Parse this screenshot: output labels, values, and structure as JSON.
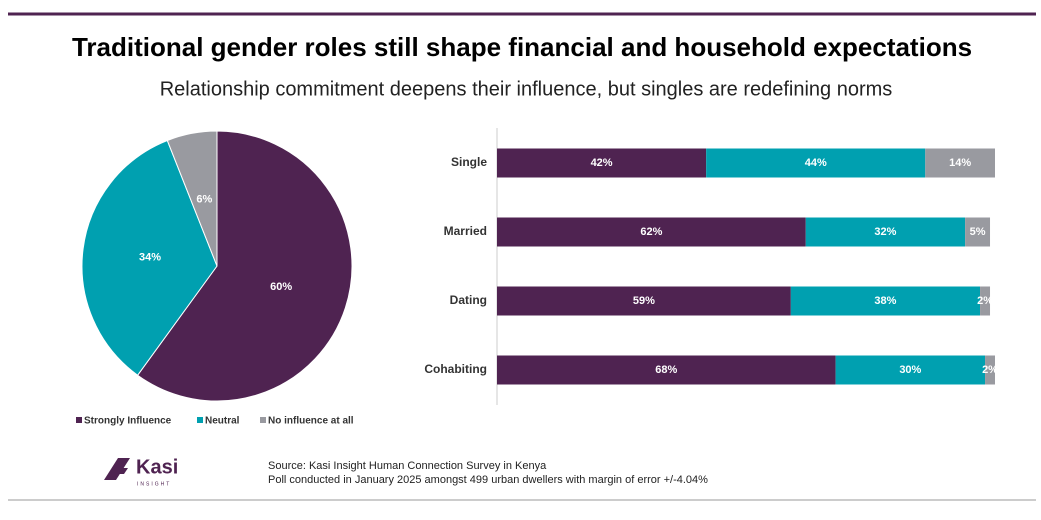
{
  "header": {
    "title": "Traditional gender roles still shape financial and household expectations",
    "subtitle": "Relationship commitment deepens their influence, but singles are redefining norms"
  },
  "chart_data": [
    {
      "type": "pie",
      "values": [
        60,
        34,
        6
      ],
      "value_labels": [
        "60%",
        "34%",
        "6%"
      ],
      "colors": [
        "#4f2351",
        "#00a0b0",
        "#999aa0"
      ]
    },
    {
      "type": "stacked_bar",
      "orientation": "horizontal",
      "categories": [
        "Single",
        "Married",
        "Dating",
        "Cohabiting"
      ],
      "xlim": [
        0,
        100
      ],
      "series": [
        {
          "name": "Strongly Influence",
          "color": "#4f2351",
          "values": [
            42,
            62,
            59,
            68
          ],
          "value_labels": [
            "42%",
            "62%",
            "59%",
            "68%"
          ]
        },
        {
          "name": "Neutral",
          "color": "#00a0b0",
          "values": [
            44,
            32,
            38,
            30
          ],
          "value_labels": [
            "44%",
            "32%",
            "38%",
            "30%"
          ]
        },
        {
          "name": "No influence at all",
          "color": "#999aa0",
          "values": [
            14,
            5,
            2,
            2
          ],
          "value_labels": [
            "14%",
            "5%",
            "2%",
            "2%"
          ]
        }
      ]
    }
  ],
  "footer": {
    "logo": "Kasi",
    "logo_sub": "INSIGHT",
    "source": "Source: Kasi Insight Human Connection Survey in Kenya",
    "note": "Poll conducted  in January  2025 amongst 499 urban dwellers with margin of error +/-4.04%"
  }
}
